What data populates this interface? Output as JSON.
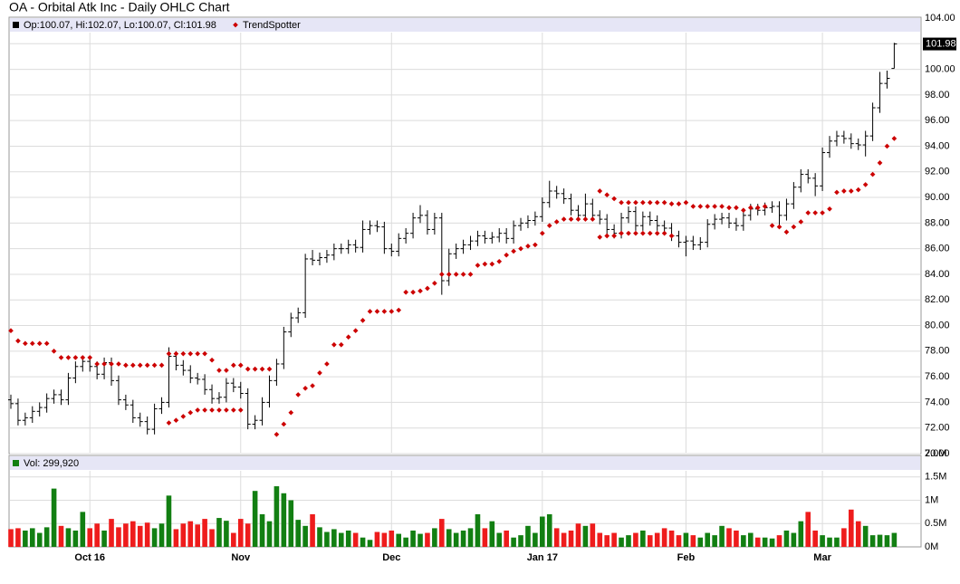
{
  "chart_data": {
    "type": "ohlc",
    "title": "OA - Orbital Atk Inc - Daily OHLC Chart",
    "legend_price": "Op:100.07, Hi:102.07, Lo:100.07, Cl:101.98",
    "trend_name": "TrendSpotter",
    "trend_color": "#cc0000",
    "legend_volume": "Vol: 299,920",
    "bar_color": "#000000",
    "up_color": "#127f12",
    "down_color": "#ee1c1c",
    "grid": true,
    "categories": [
      null,
      null,
      null,
      null,
      null,
      null,
      null,
      null,
      null,
      null,
      null,
      "Oct 16",
      null,
      null,
      null,
      null,
      null,
      null,
      null,
      null,
      null,
      null,
      null,
      null,
      null,
      null,
      null,
      null,
      null,
      null,
      null,
      null,
      "Nov",
      null,
      null,
      null,
      null,
      null,
      null,
      null,
      null,
      null,
      null,
      null,
      null,
      null,
      null,
      null,
      null,
      null,
      null,
      null,
      null,
      "Dec",
      null,
      null,
      null,
      null,
      null,
      null,
      null,
      null,
      null,
      null,
      null,
      null,
      null,
      null,
      null,
      null,
      null,
      null,
      null,
      null,
      "Jan 17",
      null,
      null,
      null,
      null,
      null,
      null,
      null,
      null,
      null,
      null,
      null,
      null,
      null,
      null,
      null,
      null,
      null,
      null,
      null,
      "Feb",
      null,
      null,
      null,
      null,
      null,
      null,
      null,
      null,
      null,
      null,
      null,
      null,
      null,
      null,
      null,
      null,
      null,
      null,
      "Mar",
      null,
      null,
      null,
      null,
      null,
      null,
      null,
      null,
      null,
      null
    ],
    "bars": [
      [
        74.2,
        74.6,
        73.5,
        73.9
      ],
      [
        73.9,
        74.3,
        72.2,
        72.6
      ],
      [
        72.6,
        73.2,
        72.2,
        72.8
      ],
      [
        72.8,
        73.7,
        72.4,
        73.3
      ],
      [
        73.3,
        74.0,
        72.9,
        73.6
      ],
      [
        73.6,
        74.7,
        73.2,
        74.3
      ],
      [
        74.3,
        75.0,
        73.9,
        74.6
      ],
      [
        74.6,
        75.0,
        73.8,
        74.2
      ],
      [
        74.2,
        76.3,
        73.8,
        75.9
      ],
      [
        75.9,
        77.2,
        75.5,
        76.8
      ],
      [
        76.8,
        77.6,
        76.4,
        77.2
      ],
      [
        77.2,
        77.6,
        76.4,
        76.8
      ],
      [
        76.8,
        77.2,
        75.8,
        76.2
      ],
      [
        76.2,
        77.5,
        75.8,
        77.1
      ],
      [
        77.1,
        77.5,
        75.3,
        75.7
      ],
      [
        75.7,
        76.1,
        73.8,
        74.2
      ],
      [
        74.2,
        74.6,
        73.4,
        73.8
      ],
      [
        73.8,
        74.2,
        72.4,
        72.8
      ],
      [
        72.8,
        73.2,
        72.1,
        72.5
      ],
      [
        72.5,
        72.9,
        71.5,
        71.9
      ],
      [
        71.9,
        73.9,
        71.5,
        73.5
      ],
      [
        73.5,
        74.4,
        73.1,
        74.0
      ],
      [
        74.0,
        78.3,
        73.6,
        77.6
      ],
      [
        77.6,
        78.0,
        76.5,
        76.9
      ],
      [
        76.9,
        77.3,
        76.1,
        76.5
      ],
      [
        76.5,
        76.9,
        75.5,
        75.9
      ],
      [
        75.9,
        76.3,
        75.4,
        75.8
      ],
      [
        75.8,
        76.2,
        74.6,
        75.0
      ],
      [
        75.0,
        75.4,
        73.9,
        74.3
      ],
      [
        74.3,
        74.8,
        73.9,
        74.4
      ],
      [
        74.4,
        75.9,
        74.0,
        75.5
      ],
      [
        75.5,
        75.9,
        74.8,
        75.2
      ],
      [
        75.2,
        75.6,
        74.3,
        74.7
      ],
      [
        74.7,
        75.1,
        71.9,
        72.3
      ],
      [
        72.3,
        73.0,
        71.9,
        72.6
      ],
      [
        72.6,
        74.4,
        72.2,
        74.0
      ],
      [
        74.0,
        76.1,
        73.6,
        75.7
      ],
      [
        75.7,
        77.4,
        75.3,
        77.0
      ],
      [
        77.0,
        79.9,
        76.6,
        79.5
      ],
      [
        79.5,
        81.0,
        79.1,
        80.6
      ],
      [
        80.6,
        81.4,
        80.2,
        81.0
      ],
      [
        81.0,
        85.6,
        80.6,
        85.2
      ],
      [
        85.2,
        85.9,
        84.7,
        85.1
      ],
      [
        85.1,
        85.7,
        84.7,
        85.3
      ],
      [
        85.3,
        85.9,
        84.9,
        85.5
      ],
      [
        85.5,
        86.4,
        85.1,
        86.0
      ],
      [
        86.0,
        86.4,
        85.6,
        86.0
      ],
      [
        86.0,
        86.7,
        85.6,
        86.3
      ],
      [
        86.3,
        86.7,
        85.7,
        86.1
      ],
      [
        86.1,
        88.2,
        85.7,
        87.5
      ],
      [
        87.5,
        88.2,
        87.1,
        87.8
      ],
      [
        87.8,
        88.2,
        87.3,
        87.7
      ],
      [
        87.7,
        88.1,
        85.6,
        86.0
      ],
      [
        86.0,
        86.4,
        85.4,
        85.8
      ],
      [
        85.8,
        87.2,
        85.4,
        86.8
      ],
      [
        86.8,
        87.6,
        86.4,
        87.2
      ],
      [
        87.2,
        88.8,
        86.8,
        88.4
      ],
      [
        88.4,
        89.4,
        88.0,
        88.6
      ],
      [
        88.6,
        89.0,
        87.1,
        87.5
      ],
      [
        87.5,
        88.8,
        87.1,
        88.4
      ],
      [
        88.4,
        88.8,
        82.4,
        83.5
      ],
      [
        83.5,
        86.0,
        83.1,
        85.6
      ],
      [
        85.6,
        86.4,
        85.2,
        86.0
      ],
      [
        86.0,
        86.7,
        85.6,
        86.3
      ],
      [
        86.3,
        87.0,
        85.9,
        86.6
      ],
      [
        86.6,
        87.4,
        86.2,
        87.0
      ],
      [
        87.0,
        87.4,
        86.4,
        86.8
      ],
      [
        86.8,
        87.3,
        86.4,
        86.9
      ],
      [
        86.9,
        87.6,
        86.5,
        87.2
      ],
      [
        87.2,
        87.6,
        86.4,
        86.8
      ],
      [
        86.8,
        88.2,
        86.4,
        87.8
      ],
      [
        87.8,
        88.4,
        87.4,
        88.0
      ],
      [
        88.0,
        88.6,
        87.6,
        88.2
      ],
      [
        88.2,
        88.9,
        87.8,
        88.5
      ],
      [
        88.5,
        90.0,
        88.1,
        89.6
      ],
      [
        89.6,
        91.3,
        89.2,
        90.5
      ],
      [
        90.5,
        90.9,
        89.9,
        90.3
      ],
      [
        90.3,
        90.7,
        89.5,
        89.9
      ],
      [
        89.9,
        90.3,
        88.6,
        89.0
      ],
      [
        89.0,
        89.4,
        88.2,
        88.6
      ],
      [
        88.6,
        90.3,
        88.2,
        89.5
      ],
      [
        89.5,
        89.9,
        88.2,
        88.6
      ],
      [
        88.6,
        89.0,
        87.9,
        88.3
      ],
      [
        88.3,
        88.7,
        87.1,
        87.5
      ],
      [
        87.5,
        87.9,
        86.8,
        87.2
      ],
      [
        87.2,
        88.8,
        86.8,
        88.4
      ],
      [
        88.4,
        89.3,
        88.0,
        88.9
      ],
      [
        88.9,
        89.3,
        87.4,
        87.8
      ],
      [
        87.8,
        88.9,
        87.4,
        88.5
      ],
      [
        88.5,
        88.9,
        87.8,
        88.2
      ],
      [
        88.2,
        88.6,
        87.4,
        87.8
      ],
      [
        87.8,
        88.2,
        87.2,
        87.6
      ],
      [
        87.6,
        88.0,
        86.6,
        87.0
      ],
      [
        87.0,
        87.4,
        86.1,
        86.5
      ],
      [
        86.5,
        87.0,
        85.4,
        86.6
      ],
      [
        86.6,
        87.0,
        85.9,
        86.3
      ],
      [
        86.3,
        86.9,
        85.9,
        86.5
      ],
      [
        86.5,
        88.3,
        86.1,
        87.9
      ],
      [
        87.9,
        88.7,
        87.5,
        88.3
      ],
      [
        88.3,
        88.8,
        87.9,
        88.4
      ],
      [
        88.4,
        88.8,
        87.6,
        88.0
      ],
      [
        88.0,
        88.4,
        87.4,
        87.8
      ],
      [
        87.8,
        89.0,
        87.4,
        88.6
      ],
      [
        88.6,
        89.5,
        88.2,
        89.1
      ],
      [
        89.1,
        89.5,
        88.6,
        89.0
      ],
      [
        89.0,
        89.6,
        88.6,
        89.2
      ],
      [
        89.2,
        89.7,
        88.8,
        89.3
      ],
      [
        89.3,
        89.7,
        87.8,
        88.6
      ],
      [
        88.6,
        89.9,
        88.2,
        89.5
      ],
      [
        89.5,
        91.2,
        89.1,
        90.8
      ],
      [
        90.8,
        92.2,
        90.4,
        91.8
      ],
      [
        91.8,
        92.2,
        91.1,
        91.5
      ],
      [
        91.5,
        91.9,
        90.1,
        90.9
      ],
      [
        90.9,
        93.9,
        90.5,
        93.5
      ],
      [
        93.5,
        94.8,
        93.1,
        94.4
      ],
      [
        94.4,
        95.2,
        94.0,
        94.8
      ],
      [
        94.8,
        95.2,
        94.2,
        94.6
      ],
      [
        94.6,
        95.0,
        93.8,
        94.2
      ],
      [
        94.2,
        94.6,
        93.7,
        94.1
      ],
      [
        94.1,
        95.2,
        93.2,
        94.8
      ],
      [
        94.8,
        97.4,
        94.4,
        97.0
      ],
      [
        97.0,
        99.8,
        96.6,
        98.9
      ],
      [
        98.9,
        99.9,
        98.5,
        99.3
      ],
      [
        100.07,
        102.07,
        100.07,
        101.98
      ]
    ],
    "trend_x": [
      0,
      1,
      2,
      3,
      4,
      5,
      6,
      7,
      8,
      9,
      10,
      11,
      12,
      13,
      14,
      15,
      16,
      17,
      18,
      19,
      20,
      21,
      22,
      23,
      24,
      25,
      26,
      27,
      28,
      29,
      30,
      31,
      32,
      33,
      34,
      35,
      36,
      22,
      23,
      24,
      25,
      26,
      27,
      28,
      29,
      30,
      31,
      32,
      37,
      38,
      39,
      40,
      41,
      42,
      43,
      44,
      45,
      46,
      47,
      48,
      49,
      50,
      51,
      52,
      53,
      54,
      55,
      56,
      57,
      58,
      59,
      60,
      61,
      62,
      63,
      64,
      65,
      66,
      67,
      68,
      69,
      70,
      71,
      72,
      73,
      74,
      75,
      76,
      77,
      78,
      79,
      80,
      81,
      82,
      83,
      84,
      85,
      86,
      87,
      88,
      89,
      90,
      91,
      92,
      93,
      94,
      95,
      96,
      97,
      98,
      99,
      100,
      101,
      102,
      103,
      104,
      105,
      82,
      83,
      84,
      85,
      86,
      87,
      88,
      89,
      90,
      91,
      92,
      106,
      107,
      108,
      109,
      110,
      111,
      112,
      113,
      114,
      115,
      116,
      117,
      118,
      119,
      120,
      121,
      122,
      123
    ],
    "trend_values": [
      79.6,
      78.8,
      78.6,
      78.6,
      78.6,
      78.6,
      78.0,
      77.5,
      77.5,
      77.5,
      77.5,
      77.5,
      77.0,
      77.0,
      77.0,
      77.0,
      76.9,
      76.9,
      76.9,
      76.9,
      76.9,
      76.9,
      77.8,
      77.8,
      77.8,
      77.8,
      77.8,
      77.8,
      77.3,
      76.5,
      76.5,
      76.9,
      76.9,
      76.6,
      76.6,
      76.6,
      76.6,
      72.4,
      72.6,
      72.9,
      73.2,
      73.4,
      73.4,
      73.4,
      73.4,
      73.4,
      73.4,
      73.4,
      71.5,
      72.3,
      73.2,
      74.6,
      75.1,
      75.3,
      76.3,
      77.0,
      78.5,
      78.5,
      79.1,
      79.6,
      80.4,
      81.1,
      81.1,
      81.1,
      81.1,
      81.2,
      82.6,
      82.6,
      82.7,
      82.9,
      83.3,
      84.0,
      84.0,
      84.0,
      84.0,
      84.0,
      84.7,
      84.8,
      84.8,
      85.0,
      85.5,
      85.8,
      86.0,
      86.2,
      86.3,
      87.2,
      87.8,
      88.1,
      88.3,
      88.3,
      88.3,
      88.3,
      88.3,
      90.5,
      90.2,
      89.9,
      89.6,
      89.6,
      89.6,
      89.6,
      89.6,
      89.6,
      89.6,
      89.5,
      89.5,
      89.6,
      89.3,
      89.3,
      89.3,
      89.3,
      89.3,
      89.2,
      89.2,
      89.0,
      89.2,
      89.2,
      89.3,
      86.9,
      87.0,
      87.0,
      87.2,
      87.2,
      87.2,
      87.2,
      87.2,
      87.2,
      87.2,
      87.0,
      87.8,
      87.7,
      87.3,
      87.7,
      88.1,
      88.8,
      88.8,
      88.8,
      89.1,
      90.4,
      90.5,
      90.5,
      90.6,
      91.0,
      91.8,
      92.7,
      94.0,
      94.6
    ],
    "volume": [
      380000,
      400000,
      350000,
      400000,
      300000,
      420000,
      1250000,
      450000,
      400000,
      350000,
      750000,
      400000,
      500000,
      350000,
      600000,
      420000,
      500000,
      550000,
      450000,
      520000,
      400000,
      500000,
      1100000,
      380000,
      500000,
      550000,
      480000,
      600000,
      380000,
      620000,
      560000,
      300000,
      600000,
      500000,
      1200000,
      700000,
      550000,
      1300000,
      1150000,
      1000000,
      580000,
      450000,
      700000,
      420000,
      320000,
      380000,
      300000,
      350000,
      300000,
      200000,
      150000,
      320000,
      300000,
      350000,
      280000,
      200000,
      350000,
      280000,
      300000,
      400000,
      600000,
      380000,
      300000,
      350000,
      400000,
      700000,
      400000,
      550000,
      300000,
      350000,
      200000,
      250000,
      450000,
      300000,
      650000,
      700000,
      400000,
      300000,
      350000,
      500000,
      450000,
      500000,
      300000,
      250000,
      300000,
      200000,
      250000,
      300000,
      350000,
      250000,
      300000,
      400000,
      350000,
      250000,
      300000,
      250000,
      200000,
      300000,
      250000,
      450000,
      400000,
      350000,
      250000,
      300000,
      200000,
      200000,
      180000,
      250000,
      350000,
      300000,
      550000,
      750000,
      350000,
      250000,
      200000,
      200000,
      400000,
      800000,
      550000,
      450000,
      250000,
      260000,
      250000,
      299920
    ],
    "ylim": [
      70,
      104
    ],
    "yticks": [
      {
        "value": 70,
        "label": "70.00"
      },
      {
        "value": 72,
        "label": "72.00"
      },
      {
        "value": 74,
        "label": "74.00"
      },
      {
        "value": 76,
        "label": "76.00"
      },
      {
        "value": 78,
        "label": "78.00"
      },
      {
        "value": 80,
        "label": "80.00"
      },
      {
        "value": 82,
        "label": "82.00"
      },
      {
        "value": 84,
        "label": "84.00"
      },
      {
        "value": 86,
        "label": "86.00"
      },
      {
        "value": 88,
        "label": "88.00"
      },
      {
        "value": 90,
        "label": "90.00"
      },
      {
        "value": 92,
        "label": "92.00"
      },
      {
        "value": 94,
        "label": "94.00"
      },
      {
        "value": 96,
        "label": "96.00"
      },
      {
        "value": 98,
        "label": "98.00"
      },
      {
        "value": 100,
        "label": "100.00"
      },
      {
        "value": 102,
        "label": "102.00"
      },
      {
        "value": 104,
        "label": "104.00"
      }
    ],
    "vol_ylim": [
      0,
      2000000
    ],
    "vol_yticks": [
      {
        "value": 0,
        "label": "0M"
      },
      {
        "value": 500000,
        "label": "0.5M"
      },
      {
        "value": 1000000,
        "label": "1M"
      },
      {
        "value": 1500000,
        "label": "1.5M"
      },
      {
        "value": 2000000,
        "label": "2.0M"
      }
    ]
  }
}
